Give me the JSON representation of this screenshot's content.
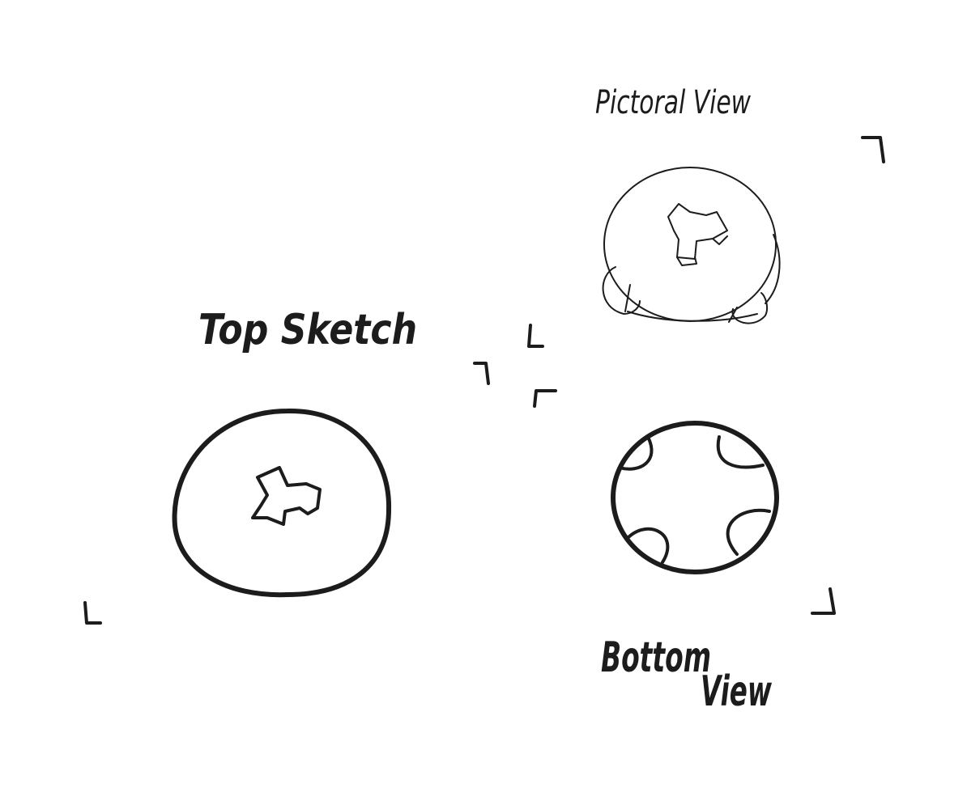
{
  "labels": {
    "pictorial_view": "Pictoral View",
    "top_sketch": "Top Sketch",
    "bottom_view_line1": "Bottom",
    "bottom_view_line2": "View"
  },
  "colors": {
    "ink": "#1c1c1c",
    "paper": "#ffffff"
  }
}
